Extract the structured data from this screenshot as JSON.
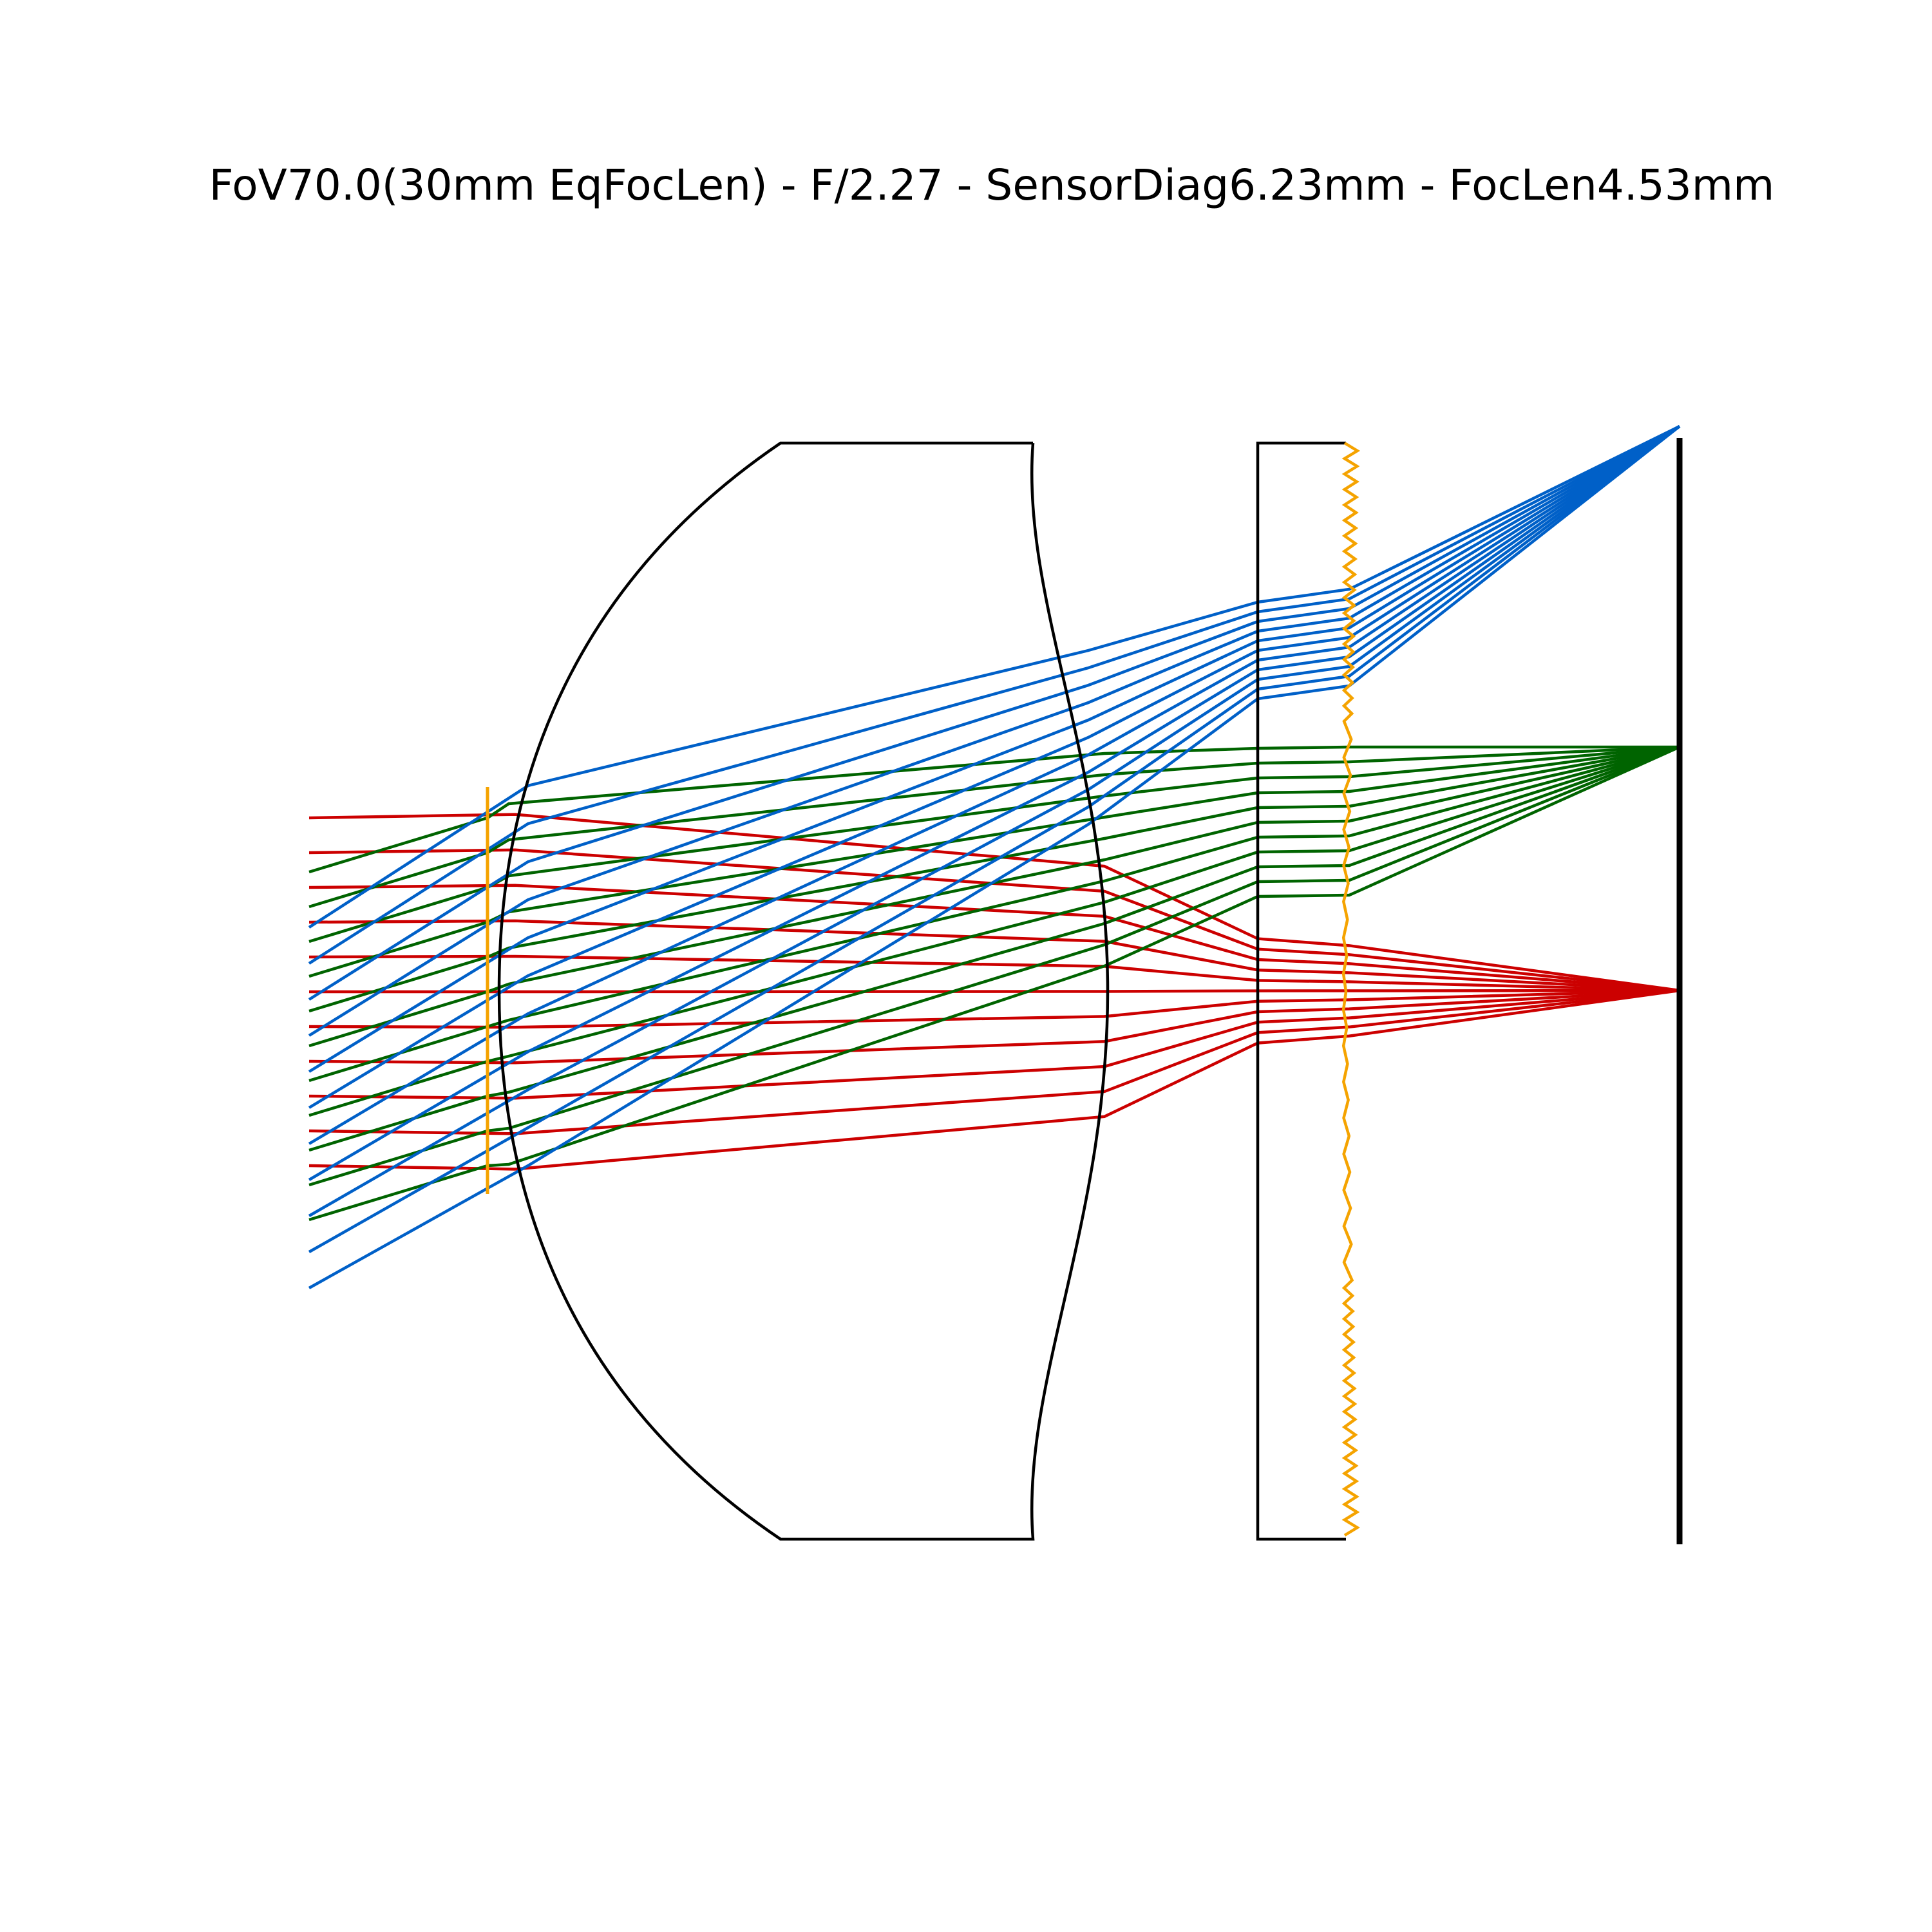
{
  "title": "FoV70.0(30mm EqFocLen) - F/2.27 - SensorDiag6.23mm - FocLen4.53mm",
  "colors": {
    "background": "#ffffff",
    "outline": "#000000",
    "aperture_stop": "#f5a300",
    "focus_surface": "#f5a300",
    "field_on_axis": "#cc0000",
    "field_mid": "#006400",
    "field_edge": "#0060c8"
  },
  "fields": [
    {
      "key": "on_axis",
      "color_key": "field_on_axis"
    },
    {
      "key": "mid_field",
      "color_key": "field_mid"
    },
    {
      "key": "edge_field",
      "color_key": "field_edge"
    }
  ]
}
